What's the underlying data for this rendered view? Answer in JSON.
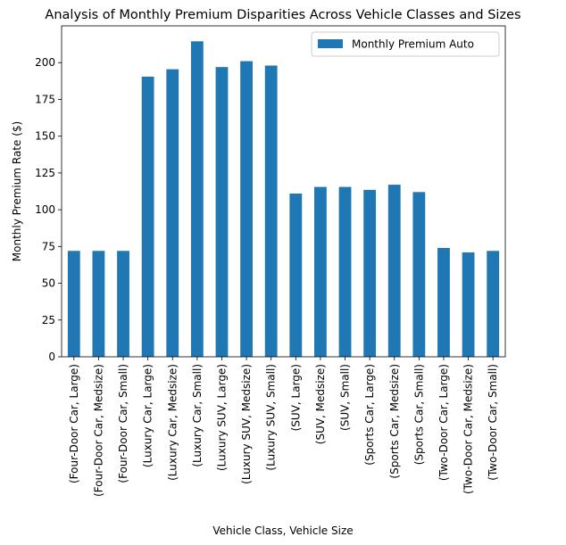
{
  "chart_data": {
    "type": "bar",
    "title": "Analysis of Monthly Premium Disparities Across Vehicle Classes and Sizes",
    "xlabel": "Vehicle Class, Vehicle Size",
    "ylabel": "Monthly Premium Rate ($)",
    "ylim": [
      0,
      225
    ],
    "yticks": [
      0,
      25,
      50,
      75,
      100,
      125,
      150,
      175,
      200
    ],
    "grid": false,
    "legend_position": "top-right",
    "bar_color": "#1f77b4",
    "categories": [
      "(Four-Door Car, Large)",
      "(Four-Door Car, Medsize)",
      "(Four-Door Car, Small)",
      "(Luxury Car, Large)",
      "(Luxury Car, Medsize)",
      "(Luxury Car, Small)",
      "(Luxury SUV, Large)",
      "(Luxury SUV, Medsize)",
      "(Luxury SUV, Small)",
      "(SUV, Large)",
      "(SUV, Medsize)",
      "(SUV, Small)",
      "(Sports Car, Large)",
      "(Sports Car, Medsize)",
      "(Sports Car, Small)",
      "(Two-Door Car, Large)",
      "(Two-Door Car, Medsize)",
      "(Two-Door Car, Small)"
    ],
    "series": [
      {
        "name": "Monthly Premium Auto",
        "values": [
          72,
          72,
          72,
          190.5,
          195.5,
          214.5,
          197,
          201,
          198,
          111,
          115.5,
          115.5,
          113.5,
          117,
          112,
          74,
          71,
          72
        ]
      }
    ]
  }
}
